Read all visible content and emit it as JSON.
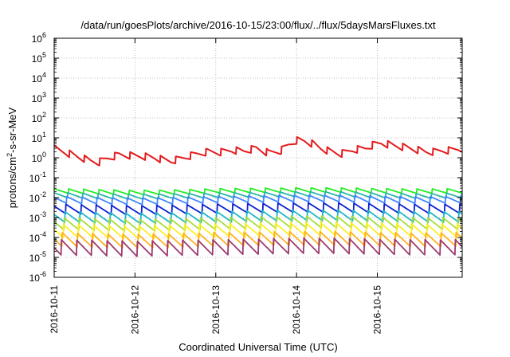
{
  "chart_data": {
    "type": "line",
    "title": "/data/run/goesPlots/archive/2016-10-15/23:00/flux/../flux/5daysMarsFluxes.txt",
    "xlabel": "Coordinated Universal Time (UTC)",
    "ylabel_main": "protons/cm",
    "ylabel_sup": "2",
    "ylabel_rest": "-s-sr-MeV",
    "x_tick_labels": [
      "2016-10-11",
      "2016-10-12",
      "2016-10-13",
      "2016-10-14",
      "2016-10-15"
    ],
    "x_tick_positions_days": [
      0,
      1,
      2,
      3,
      4
    ],
    "xlim_days": [
      0,
      5.05
    ],
    "y_scale": "log",
    "y_tick_exponents": [
      -6,
      -5,
      -4,
      -3,
      -2,
      -1,
      0,
      1,
      2,
      3,
      4,
      5,
      6
    ],
    "ylim": [
      1e-06,
      1000000.0
    ],
    "grid": true,
    "legend": "none",
    "sawtooth_period_days": 0.1875,
    "series": [
      {
        "color": "#e31a1c",
        "x_days": [
          0,
          0.15,
          0.3,
          0.45,
          0.55,
          0.65,
          0.8,
          0.95,
          1.1,
          1.25,
          1.35,
          1.45,
          1.6,
          1.75,
          1.9,
          2.05,
          2.2,
          2.35,
          2.5,
          2.65,
          2.8,
          2.9,
          3.0,
          3.1,
          3.2,
          3.3,
          3.4,
          3.55,
          3.7,
          3.85,
          3.95,
          4.05,
          4.2,
          4.35,
          4.5,
          4.6,
          4.7,
          4.8,
          4.9,
          5.0
        ],
        "values": [
          2.8,
          1.8,
          1.1,
          0.7,
          0.6,
          0.9,
          1.4,
          1.3,
          1.2,
          1.0,
          0.8,
          0.7,
          1.0,
          1.5,
          2.0,
          1.9,
          2.4,
          2.2,
          3.0,
          1.8,
          2.2,
          4.5,
          7.5,
          7.0,
          5.0,
          3.0,
          2.2,
          1.6,
          2.5,
          3.0,
          4.5,
          5.5,
          4.2,
          3.3,
          2.5,
          2.0,
          2.0,
          2.3,
          2.4,
          2.8
        ],
        "sawtooth_amplitude": 2.3
      },
      {
        "color": "#22ee22",
        "base_values": [
          0.022,
          0.02,
          0.018,
          0.019,
          0.022,
          0.023,
          0.024,
          0.024,
          0.022,
          0.021,
          0.022
        ],
        "sawtooth_amplitude": 1.7
      },
      {
        "color": "#29b6a6",
        "base_values": [
          0.014,
          0.012,
          0.011,
          0.012,
          0.013,
          0.014,
          0.015,
          0.015,
          0.013,
          0.012,
          0.013
        ],
        "sawtooth_amplitude": 1.8
      },
      {
        "color": "#3f86ff",
        "base_values": [
          0.008,
          0.007,
          0.0065,
          0.007,
          0.008,
          0.0085,
          0.009,
          0.009,
          0.008,
          0.0075,
          0.008
        ],
        "sawtooth_amplitude": 2.2
      },
      {
        "color": "#0c1fd0",
        "base_values": [
          0.0028,
          0.0025,
          0.0023,
          0.0025,
          0.0028,
          0.003,
          0.0032,
          0.0032,
          0.0029,
          0.0027,
          0.0028
        ],
        "sawtooth_amplitude": 3.0
      },
      {
        "color": "#20b8c8",
        "base_values": [
          0.0011,
          0.001,
          0.0009,
          0.001,
          0.0011,
          0.0012,
          0.0013,
          0.0013,
          0.0012,
          0.0011,
          0.0011
        ],
        "sawtooth_amplitude": 3.5
      },
      {
        "color": "#a6dd3a",
        "base_values": [
          0.0005,
          0.00045,
          0.0004,
          0.00045,
          0.0005,
          0.00055,
          0.0006,
          0.0006,
          0.00055,
          0.0005,
          0.0005
        ],
        "sawtooth_amplitude": 4.0
      },
      {
        "color": "#ffee22",
        "base_values": [
          0.00022,
          0.0002,
          0.00018,
          0.0002,
          0.00022,
          0.00024,
          0.00026,
          0.00026,
          0.00024,
          0.00022,
          0.00022
        ],
        "sawtooth_amplitude": 4.5
      },
      {
        "color": "#ffb020",
        "base_values": [
          8e-05,
          7e-05,
          6.5e-05,
          7e-05,
          8e-05,
          8.5e-05,
          9e-05,
          9e-05,
          8e-05,
          7.5e-05,
          8e-05
        ],
        "sawtooth_amplitude": 5.0
      },
      {
        "color": "#9b3a6e",
        "base_values": [
          3.2e-05,
          3e-05,
          2.7e-05,
          3e-05,
          3.2e-05,
          3.5e-05,
          3.8e-05,
          3.8e-05,
          3.4e-05,
          3.2e-05,
          3.2e-05
        ],
        "sawtooth_amplitude": 6.0
      }
    ]
  }
}
